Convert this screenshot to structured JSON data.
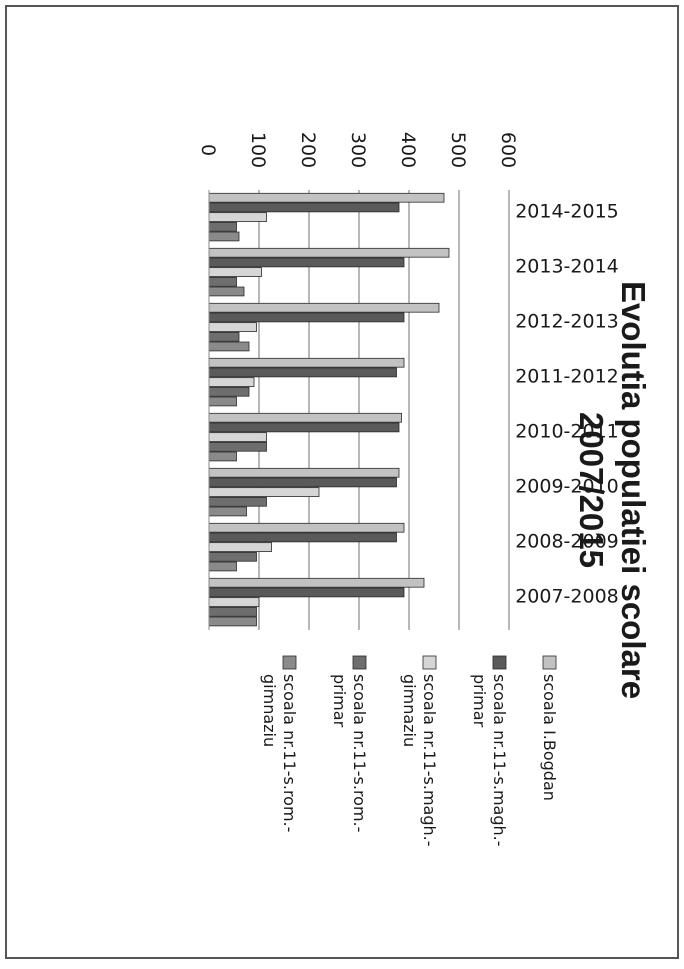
{
  "chart_data": {
    "type": "bar",
    "orientation": "horizontal",
    "title": "Evolutia populatiei scolare 2007/2015",
    "title_lines": [
      "Evolutia populatiei scolare",
      "2007/2015"
    ],
    "xlabel": "",
    "ylabel": "",
    "xlim": [
      0,
      600
    ],
    "x_ticks": [
      "0",
      "100",
      "200",
      "300",
      "400",
      "500",
      "600"
    ],
    "grid": true,
    "legend_position": "right",
    "categories": [
      "2014-2015",
      "2013-2014",
      "2012-2013",
      "2011-2012",
      "2010-2011",
      "2009-2010",
      "2008-2009",
      "2007-2008"
    ],
    "series": [
      {
        "name": "scoala I.Bogdan",
        "legend_lines": [
          "scoala I.Bogdan"
        ],
        "color": "#c2c2c2",
        "values": [
          470,
          480,
          460,
          390,
          385,
          380,
          390,
          430
        ]
      },
      {
        "name": "scoala nr.11-s.magh.-primar",
        "legend_lines": [
          "scoala nr.11-s.magh.-",
          "primar"
        ],
        "color": "#5a5a5a",
        "values": [
          380,
          390,
          390,
          375,
          380,
          375,
          375,
          390
        ]
      },
      {
        "name": "scoala nr.11-s.magh.-gimnaziu",
        "legend_lines": [
          "scoala nr.11-s.magh.-",
          "gimnaziu"
        ],
        "color": "#d6d6d6",
        "values": [
          115,
          105,
          95,
          90,
          115,
          220,
          125,
          100
        ]
      },
      {
        "name": "scoala nr.11-s.rom.-primar",
        "legend_lines": [
          "scoala nr.11-s.rom.-",
          "primar"
        ],
        "color": "#6e6e6e",
        "values": [
          55,
          55,
          60,
          80,
          115,
          115,
          95,
          95
        ]
      },
      {
        "name": "scoala nr.11-s.rom.-gimnaziu",
        "legend_lines": [
          "scoala nr.11-s.rom.-",
          "gimnaziu"
        ],
        "color": "#8a8a8a",
        "values": [
          60,
          70,
          80,
          55,
          55,
          75,
          55,
          95
        ]
      }
    ]
  }
}
